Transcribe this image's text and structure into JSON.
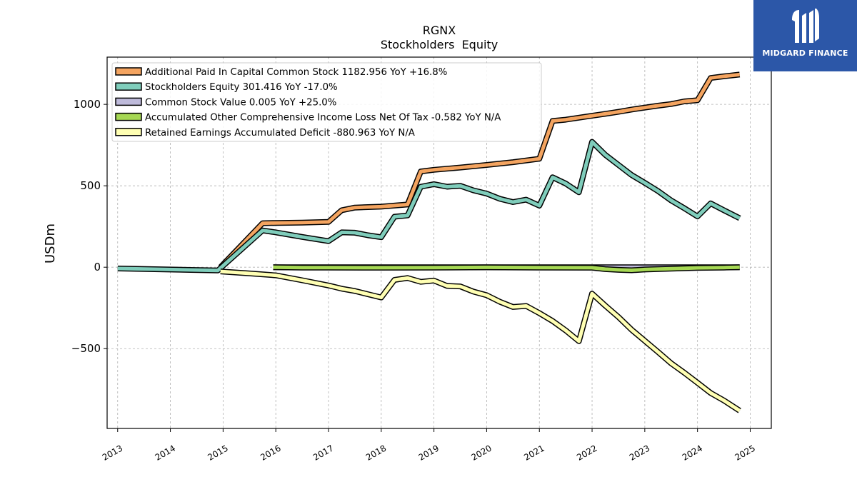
{
  "logo": {
    "text": "MIDGARD FINANCE",
    "color": "#2c57a8"
  },
  "chart_data": {
    "type": "line",
    "title": "RGNX",
    "subtitle": "Stockholders  Equity",
    "ylabel": "USDm",
    "xlabel": "",
    "x_range": [
      2012.8,
      2025.4
    ],
    "ylim": [
      -990,
      1290
    ],
    "y_ticks": [
      -500,
      0,
      500,
      1000
    ],
    "y_tick_labels": [
      "−500",
      "0",
      "500",
      "1000"
    ],
    "x_ticks": [
      2013,
      2014,
      2015,
      2016,
      2017,
      2018,
      2019,
      2020,
      2021,
      2022,
      2023,
      2024,
      2025
    ],
    "x_tick_labels": [
      "2013",
      "2014",
      "2015",
      "2016",
      "2017",
      "2018",
      "2019",
      "2020",
      "2021",
      "2022",
      "2023",
      "2024",
      "2025"
    ],
    "grid": true,
    "legend_position": "top-left",
    "series": [
      {
        "name": "Additional Paid In Capital Common Stock  1182.956 YoY +16.8%",
        "color": "#f4a460",
        "points": [
          [
            2014.95,
            0
          ],
          [
            2015.75,
            270
          ],
          [
            2016.0,
            272
          ],
          [
            2016.5,
            274
          ],
          [
            2017.0,
            278
          ],
          [
            2017.25,
            350
          ],
          [
            2017.5,
            366
          ],
          [
            2018.0,
            372
          ],
          [
            2018.5,
            385
          ],
          [
            2018.75,
            588
          ],
          [
            2019.0,
            598
          ],
          [
            2019.5,
            612
          ],
          [
            2020.0,
            628
          ],
          [
            2020.5,
            645
          ],
          [
            2021.0,
            666
          ],
          [
            2021.25,
            898
          ],
          [
            2021.5,
            906
          ],
          [
            2021.75,
            918
          ],
          [
            2022.0,
            930
          ],
          [
            2022.25,
            942
          ],
          [
            2022.5,
            954
          ],
          [
            2022.75,
            968
          ],
          [
            2023.0,
            980
          ],
          [
            2023.25,
            992
          ],
          [
            2023.5,
            1002
          ],
          [
            2023.75,
            1018
          ],
          [
            2024.0,
            1025
          ],
          [
            2024.25,
            1162
          ],
          [
            2024.5,
            1172
          ],
          [
            2024.8,
            1183
          ]
        ]
      },
      {
        "name": "Stockholders Equity  301.416 YoY -17.0%",
        "color": "#7fcdbb",
        "points": [
          [
            2013.0,
            -8
          ],
          [
            2014.9,
            -20
          ],
          [
            2015.75,
            226
          ],
          [
            2016.0,
            214
          ],
          [
            2016.5,
            186
          ],
          [
            2017.0,
            160
          ],
          [
            2017.25,
            214
          ],
          [
            2017.5,
            212
          ],
          [
            2017.75,
            196
          ],
          [
            2018.0,
            184
          ],
          [
            2018.25,
            310
          ],
          [
            2018.5,
            318
          ],
          [
            2018.75,
            494
          ],
          [
            2019.0,
            510
          ],
          [
            2019.25,
            494
          ],
          [
            2019.5,
            500
          ],
          [
            2019.75,
            472
          ],
          [
            2020.0,
            452
          ],
          [
            2020.25,
            420
          ],
          [
            2020.5,
            400
          ],
          [
            2020.75,
            415
          ],
          [
            2021.0,
            378
          ],
          [
            2021.25,
            552
          ],
          [
            2021.5,
            514
          ],
          [
            2021.75,
            460
          ],
          [
            2022.0,
            770
          ],
          [
            2022.25,
            690
          ],
          [
            2022.5,
            628
          ],
          [
            2022.75,
            566
          ],
          [
            2023.0,
            518
          ],
          [
            2023.25,
            468
          ],
          [
            2023.5,
            410
          ],
          [
            2023.75,
            362
          ],
          [
            2024.0,
            312
          ],
          [
            2024.25,
            392
          ],
          [
            2024.5,
            350
          ],
          [
            2024.8,
            301
          ]
        ]
      },
      {
        "name": "Common Stock Value  0.005 YoY +25.0%",
        "color": "#bebada",
        "points": [
          [
            2015.95,
            0.001
          ],
          [
            2017.0,
            0.002
          ],
          [
            2018.0,
            0.002
          ],
          [
            2019.0,
            0.003
          ],
          [
            2020.0,
            0.003
          ],
          [
            2021.0,
            0.003
          ],
          [
            2022.0,
            0.004
          ],
          [
            2023.0,
            0.004
          ],
          [
            2024.0,
            0.004
          ],
          [
            2024.8,
            0.005
          ]
        ]
      },
      {
        "name": "Accumulated Other Comprehensive Income Loss Net Of Tax  -0.582 YoY N/A",
        "color": "#a6d854",
        "points": [
          [
            2015.95,
            0
          ],
          [
            2016.5,
            -2
          ],
          [
            2017.0,
            -2
          ],
          [
            2018.0,
            -3
          ],
          [
            2019.0,
            -2
          ],
          [
            2020.0,
            -1
          ],
          [
            2021.0,
            -2
          ],
          [
            2022.0,
            -3
          ],
          [
            2022.25,
            -12
          ],
          [
            2022.5,
            -16
          ],
          [
            2022.75,
            -19
          ],
          [
            2023.0,
            -14
          ],
          [
            2023.5,
            -9
          ],
          [
            2024.0,
            -4
          ],
          [
            2024.5,
            -2
          ],
          [
            2024.8,
            -0.582
          ]
        ]
      },
      {
        "name": "Retained Earnings Accumulated Deficit  -880.963 YoY N/A",
        "color": "#ffffb3",
        "points": [
          [
            2014.95,
            -26
          ],
          [
            2015.5,
            -38
          ],
          [
            2016.0,
            -50
          ],
          [
            2016.5,
            -80
          ],
          [
            2017.0,
            -112
          ],
          [
            2017.25,
            -132
          ],
          [
            2017.5,
            -146
          ],
          [
            2017.75,
            -166
          ],
          [
            2018.0,
            -186
          ],
          [
            2018.25,
            -78
          ],
          [
            2018.5,
            -66
          ],
          [
            2018.75,
            -90
          ],
          [
            2019.0,
            -82
          ],
          [
            2019.25,
            -115
          ],
          [
            2019.5,
            -118
          ],
          [
            2019.75,
            -150
          ],
          [
            2020.0,
            -172
          ],
          [
            2020.25,
            -212
          ],
          [
            2020.5,
            -244
          ],
          [
            2020.75,
            -238
          ],
          [
            2021.0,
            -282
          ],
          [
            2021.25,
            -330
          ],
          [
            2021.5,
            -388
          ],
          [
            2021.75,
            -454
          ],
          [
            2022.0,
            -162
          ],
          [
            2022.25,
            -236
          ],
          [
            2022.5,
            -306
          ],
          [
            2022.75,
            -384
          ],
          [
            2023.0,
            -452
          ],
          [
            2023.25,
            -520
          ],
          [
            2023.5,
            -590
          ],
          [
            2023.75,
            -648
          ],
          [
            2024.0,
            -710
          ],
          [
            2024.25,
            -772
          ],
          [
            2024.5,
            -818
          ],
          [
            2024.8,
            -881
          ]
        ]
      }
    ]
  }
}
